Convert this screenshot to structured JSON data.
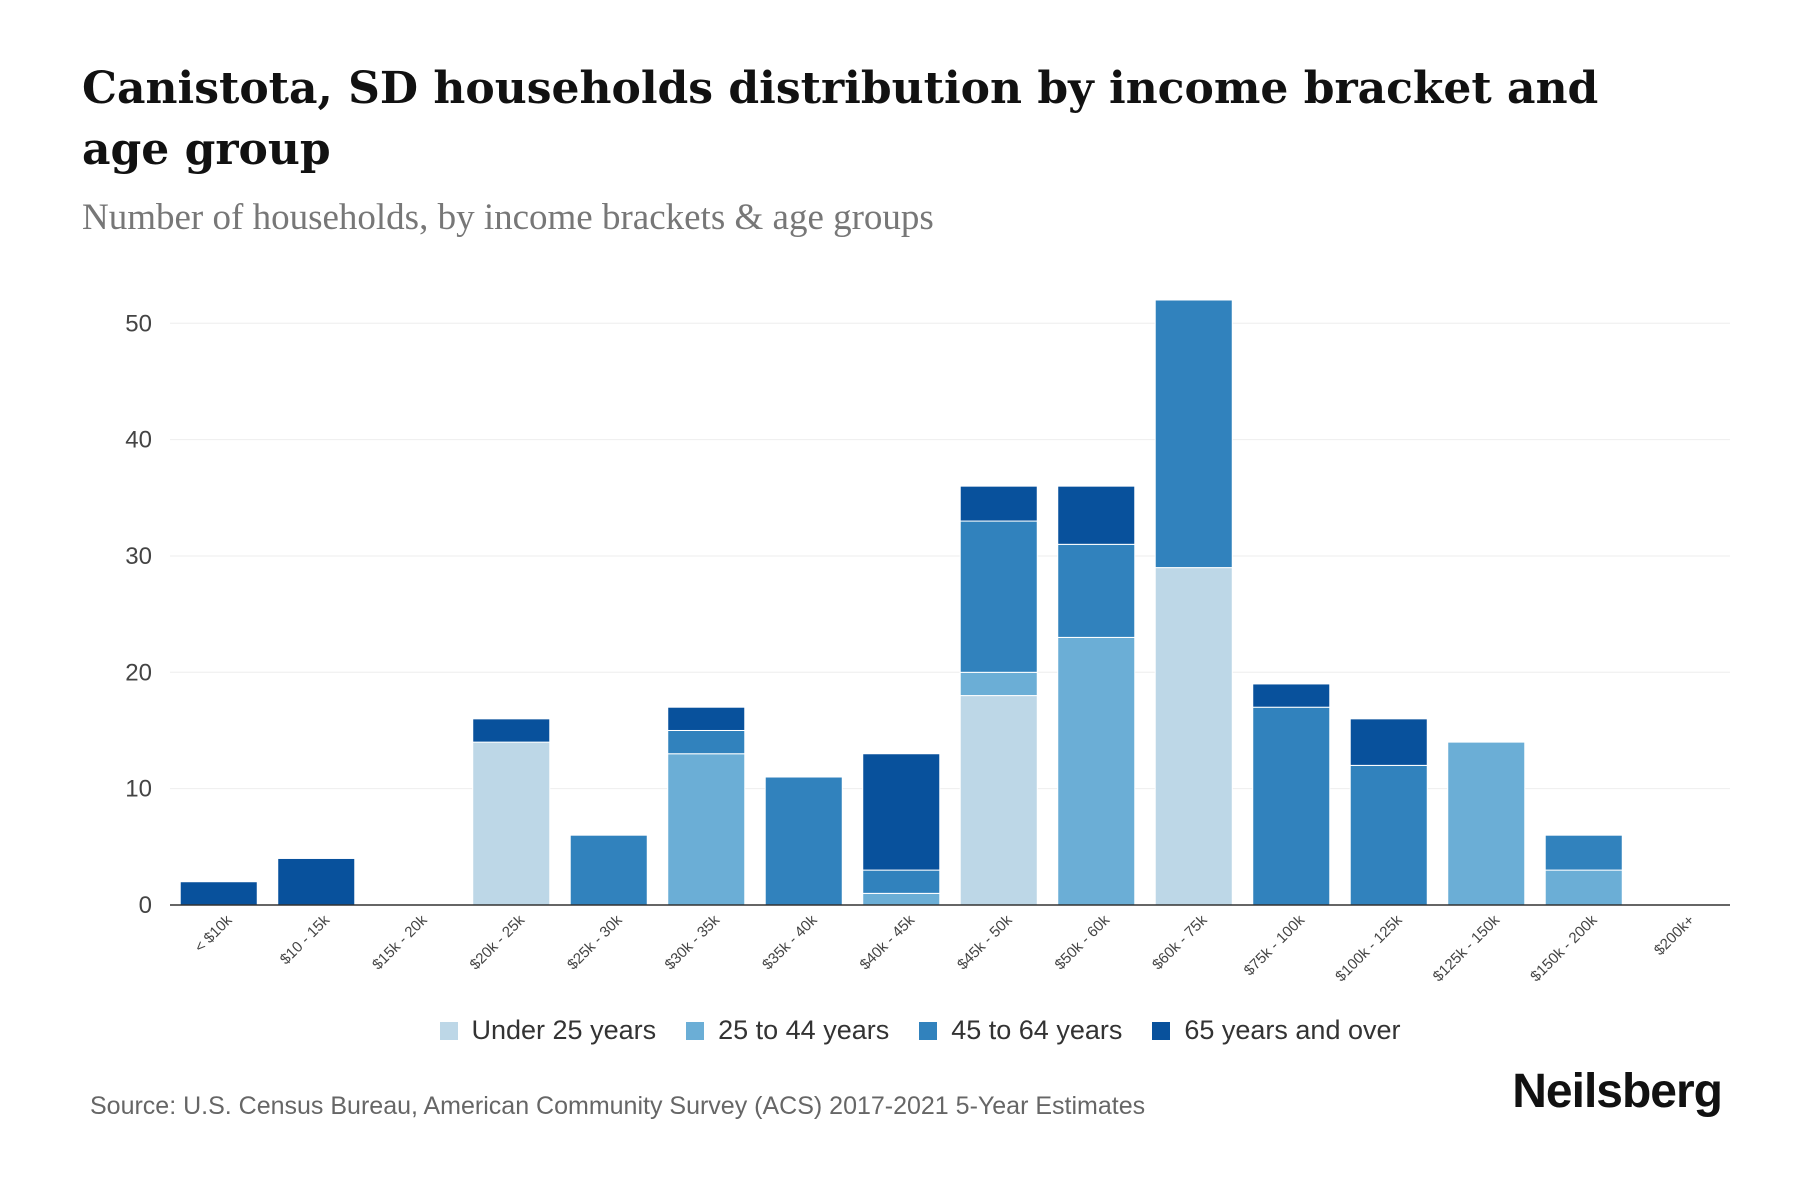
{
  "title": "Canistota, SD households distribution by income bracket and age group",
  "subtitle": "Number of households, by income brackets & age groups",
  "source": "Source: U.S. Census Bureau, American Community Survey (ACS) 2017-2021 5-Year Estimates",
  "brand": "Neilsberg",
  "colors": {
    "under_25": "#bdd7e7",
    "age_25_44": "#6baed6",
    "age_45_64": "#3182bd",
    "age_65_plus": "#08519c",
    "axis": "#333333",
    "grid": "#eeeeee"
  },
  "chart_data": {
    "type": "bar",
    "stacked": true,
    "title": "Canistota, SD households distribution by income bracket and age group",
    "subtitle": "Number of households, by income brackets & age groups",
    "xlabel": "",
    "ylabel": "",
    "ylim": [
      0,
      52
    ],
    "yticks": [
      0,
      10,
      20,
      30,
      40,
      50
    ],
    "grid": true,
    "legend_position": "bottom",
    "categories": [
      "< $10k",
      "$10 - 15k",
      "$15k - 20k",
      "$20k - 25k",
      "$25k - 30k",
      "$30k - 35k",
      "$35k - 40k",
      "$40k - 45k",
      "$45k - 50k",
      "$50k - 60k",
      "$60k - 75k",
      "$75k - 100k",
      "$100k - 125k",
      "$125k - 150k",
      "$150k - 200k",
      "$200k+"
    ],
    "series": [
      {
        "name": "Under 25 years",
        "color": "#bdd7e7",
        "values": [
          0,
          0,
          0,
          14,
          0,
          0,
          0,
          0,
          18,
          0,
          29,
          0,
          0,
          0,
          0,
          0
        ]
      },
      {
        "name": "25 to 44 years",
        "color": "#6baed6",
        "values": [
          0,
          0,
          0,
          0,
          0,
          13,
          0,
          1,
          2,
          23,
          0,
          0,
          0,
          14,
          3,
          0
        ]
      },
      {
        "name": "45 to 64 years",
        "color": "#3182bd",
        "values": [
          0,
          0,
          0,
          0,
          6,
          2,
          11,
          2,
          13,
          8,
          23,
          17,
          12,
          0,
          3,
          0
        ]
      },
      {
        "name": "65 years and over",
        "color": "#08519c",
        "values": [
          2,
          4,
          0,
          2,
          0,
          2,
          0,
          10,
          3,
          5,
          0,
          2,
          4,
          0,
          0,
          0
        ]
      }
    ]
  }
}
